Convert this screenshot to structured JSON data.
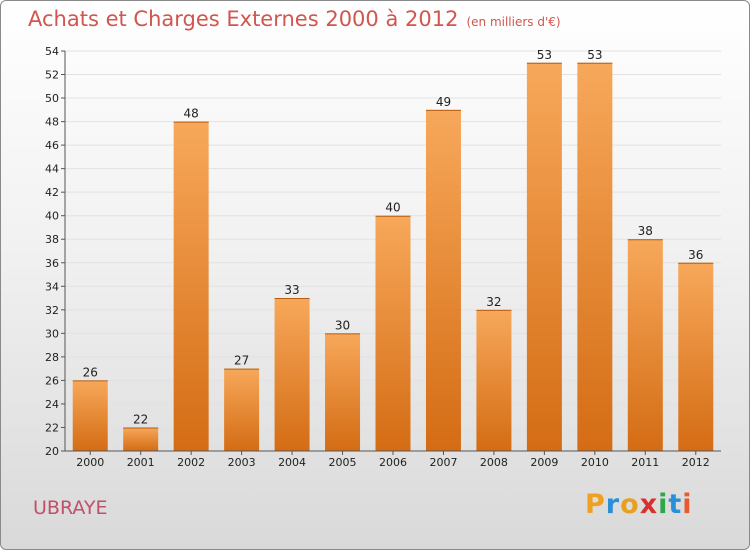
{
  "title": "Achats et Charges Externes 2000 à 2012",
  "subtitle": "(en milliers d'€)",
  "commune": "UBRAYE",
  "logo": {
    "letters": [
      "P",
      "r",
      "o",
      "x",
      "i",
      "t",
      "i"
    ],
    "colors": [
      "#f0a020",
      "#2a8fd8",
      "#e8a020",
      "#d83030",
      "#2aa84a",
      "#2a8fd8",
      "#e85a30"
    ]
  },
  "colors": {
    "bar_top": "#f7a85a",
    "bar_bottom": "#d46c14",
    "title": "#d0564e",
    "commune": "#c0506a"
  },
  "chart_data": {
    "type": "bar",
    "categories": [
      "2000",
      "2001",
      "2002",
      "2003",
      "2004",
      "2005",
      "2006",
      "2007",
      "2008",
      "2009",
      "2010",
      "2011",
      "2012"
    ],
    "values": [
      26,
      22,
      48,
      27,
      33,
      30,
      40,
      49,
      32,
      53,
      53,
      38,
      36
    ],
    "ylim": [
      20,
      54
    ],
    "yticks": [
      20,
      22,
      24,
      26,
      28,
      30,
      32,
      34,
      36,
      38,
      40,
      42,
      44,
      46,
      48,
      50,
      52,
      54
    ],
    "grid": true
  }
}
